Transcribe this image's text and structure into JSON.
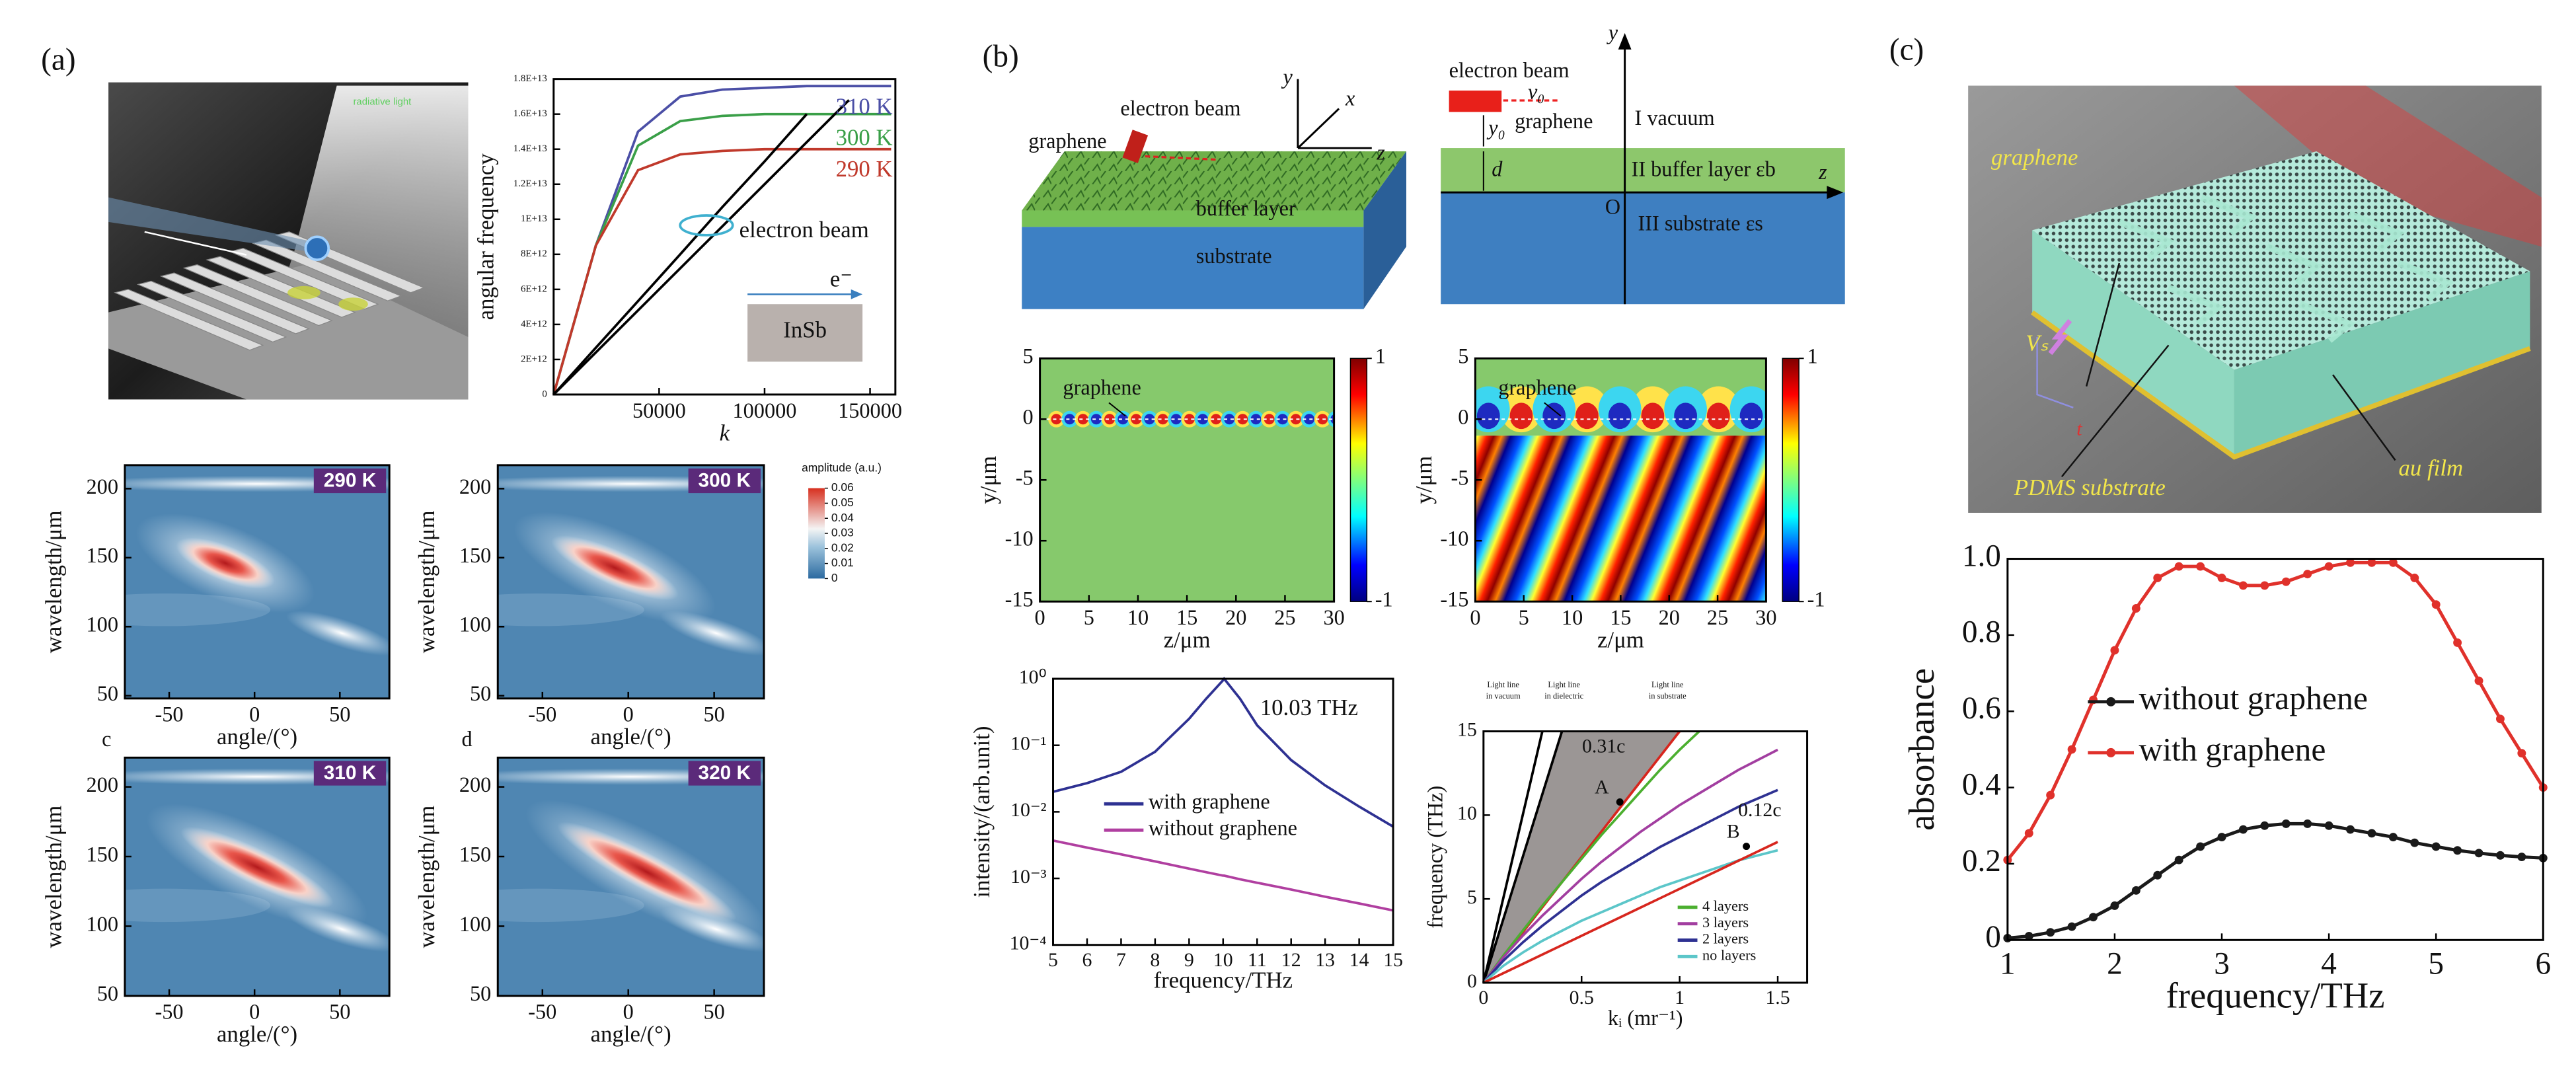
{
  "labels": {
    "a": "(a)",
    "b": "(b)",
    "c": "(c)",
    "c_sub": "c",
    "d_sub": "d"
  },
  "illustrations": {
    "a_render": {
      "label": "radiative light"
    },
    "b_slab": {
      "graphene": "graphene",
      "electron_beam": "electron beam",
      "buffer": "buffer layer",
      "substrate": "substrate",
      "y": "y",
      "x": "x",
      "z": "z"
    },
    "b_layers": {
      "electron_beam": "electron beam",
      "v0": "v₀",
      "y0": "y₀",
      "graphene": "graphene",
      "d": "d",
      "vacuum": "I vacuum",
      "buffer": "II buffer layer εb",
      "substrate": "III substrate εs",
      "origin": "O",
      "y": "y",
      "z": "z"
    },
    "c_device": {
      "graphene": "graphene",
      "vs": "Vₛ",
      "t": "t",
      "pdms": "PDMS substrate",
      "au": "au film"
    }
  },
  "chart_data": [
    {
      "type": "line",
      "ylabel": "angular frequency",
      "xlabel": "k",
      "x": [
        0,
        20000,
        40000,
        60000,
        80000,
        100000,
        120000,
        140000,
        160000
      ],
      "series": [
        {
          "name": "310 K",
          "color": "#4b4fa6",
          "values": [
            0,
            8500000000000.0,
            15000000000000.0,
            17000000000000.0,
            17400000000000.0,
            17500000000000.0,
            17600000000000.0,
            17600000000000.0,
            17600000000000.0
          ]
        },
        {
          "name": "300 K",
          "color": "#3a9f48",
          "values": [
            0,
            8500000000000.0,
            14200000000000.0,
            15600000000000.0,
            15900000000000.0,
            16000000000000.0,
            16000000000000.0,
            16000000000000.0,
            16000000000000.0
          ]
        },
        {
          "name": "290 K",
          "color": "#c0392b",
          "values": [
            0,
            8500000000000.0,
            12800000000000.0,
            13700000000000.0,
            13900000000000.0,
            14000000000000.0,
            14000000000000.0,
            14000000000000.0,
            14000000000000.0
          ]
        },
        {
          "color": "#000000",
          "values": [
            0,
            2670000000000.0,
            5330000000000.0,
            8000000000000.0,
            10700000000000.0,
            13300000000000.0,
            16000000000000.0,
            null,
            null
          ]
        },
        {
          "color": "#000000",
          "values": [
            0,
            2400000000000.0,
            4800000000000.0,
            7200000000000.0,
            9600000000000.0,
            12000000000000.0,
            14400000000000.0,
            16800000000000.0,
            null
          ]
        }
      ],
      "xlim": [
        0,
        162000
      ],
      "xticks": [
        50000,
        100000,
        150000
      ],
      "ylim": [
        0,
        18000000000000.0
      ],
      "yticks": [
        0,
        {
          "value": 2000000000000.0,
          "label": "2E+12"
        },
        {
          "value": 4000000000000.0,
          "label": "4E+12"
        },
        {
          "value": 6000000000000.0,
          "label": "6E+12"
        },
        {
          "value": 8000000000000.0,
          "label": "8E+12"
        },
        {
          "value": 10000000000000.0,
          "label": "1E+13"
        },
        {
          "value": 12000000000000.0,
          "label": "1.2E+13"
        },
        {
          "value": 14000000000000.0,
          "label": "1.4E+13"
        },
        {
          "value": 16000000000000.0,
          "label": "1.6E+13"
        },
        {
          "value": 18000000000000.0,
          "label": "1.8E+13"
        }
      ],
      "legend": "right",
      "annotations": [
        "electron beam",
        "e⁻",
        "InSb"
      ]
    },
    {
      "type": "image",
      "label": "290 K",
      "xlabel": "angle/(°)",
      "ylabel": "wavelength/μm",
      "xlim": [
        -76,
        79
      ],
      "xticks": [
        -50,
        0,
        50
      ],
      "ylim": [
        48,
        217
      ],
      "yticks": [
        50,
        100,
        150,
        200
      ]
    },
    {
      "type": "image",
      "label": "300 K",
      "xlabel": "angle/(°)",
      "ylabel": "wavelength/μm",
      "xlim": [
        -76,
        79
      ],
      "xticks": [
        -50,
        0,
        50
      ],
      "ylim": [
        48,
        217
      ],
      "yticks": [
        50,
        100,
        150,
        200
      ]
    },
    {
      "type": "image",
      "label": "310 K",
      "xlabel": "angle/(°)",
      "ylabel": "wavelength/μm",
      "xlim": [
        -76,
        79
      ],
      "xticks": [
        -50,
        0,
        50
      ],
      "ylim": [
        50,
        221
      ],
      "yticks": [
        50,
        100,
        150,
        200
      ]
    },
    {
      "type": "image",
      "label": "320 K",
      "xlabel": "angle/(°)",
      "ylabel": "wavelength/μm",
      "xlim": [
        -76,
        79
      ],
      "xticks": [
        -50,
        0,
        50
      ],
      "ylim": [
        50,
        221
      ],
      "yticks": [
        50,
        100,
        150,
        200
      ]
    },
    {
      "type": "colorbar",
      "title": "amplitude (a.u.)",
      "ylim": [
        0,
        0.06
      ],
      "yticks": [
        0,
        0.01,
        0.02,
        0.03,
        0.04,
        0.05,
        0.06
      ]
    },
    {
      "type": "field",
      "annotation": "graphene",
      "xlabel": "z/μm",
      "ylabel": "y/μm",
      "xlim": [
        0,
        30
      ],
      "xticks": [
        0,
        5,
        10,
        15,
        20,
        25,
        30
      ],
      "ylim": [
        -15,
        5
      ],
      "yticks": [
        -15,
        -10,
        -5,
        0,
        5
      ],
      "colorbar_ticks": [
        -1,
        1
      ]
    },
    {
      "type": "field",
      "annotation": "graphene",
      "xlabel": "z/μm",
      "ylabel": "y/μm",
      "xlim": [
        0,
        30
      ],
      "xticks": [
        0,
        5,
        10,
        15,
        20,
        25,
        30
      ],
      "ylim": [
        -15,
        5
      ],
      "yticks": [
        -15,
        -10,
        -5,
        0,
        5
      ],
      "colorbar_ticks": [
        -1,
        1
      ]
    },
    {
      "type": "line",
      "xlabel": "frequency/THz",
      "ylabel": "intensity/(arb.unit)",
      "log": true,
      "x": [
        5,
        6,
        7,
        8,
        9,
        9.5,
        10,
        10.03,
        10.5,
        11,
        12,
        13,
        14,
        15
      ],
      "series": [
        {
          "name": "with graphene",
          "color": "#2e3192",
          "values": [
            0.02,
            0.027,
            0.04,
            0.08,
            0.25,
            0.5,
            0.95,
            1,
            0.5,
            0.2,
            0.06,
            0.025,
            0.012,
            0.006
          ]
        },
        {
          "name": "without graphene",
          "color": "#b03fa0",
          "values": [
            0.0037,
            0.0029,
            0.0023,
            0.0018,
            0.0014,
            0.00124,
            0.0011,
            0.0011,
            0.00097,
            0.00086,
            0.00068,
            0.00053,
            0.00042,
            0.00033
          ]
        }
      ],
      "xlim": [
        5,
        15
      ],
      "xticks": [
        5,
        6,
        7,
        8,
        9,
        10,
        11,
        12,
        13,
        14,
        15
      ],
      "ylim": [
        0.0001,
        1
      ],
      "yticks": [
        {
          "value": 0.0001,
          "label": "10⁻⁴"
        },
        {
          "value": 0.001,
          "label": "10⁻³"
        },
        {
          "value": 0.01,
          "label": "10⁻²"
        },
        {
          "value": 0.1,
          "label": "10⁻¹"
        },
        {
          "value": 1,
          "label": "10⁰"
        }
      ],
      "legend": "center left",
      "annotations": [
        "10.03 THz"
      ]
    },
    {
      "type": "line",
      "xlabel": "kᵢ (mr⁻¹)",
      "ylabel": "frequency (THz)",
      "x": [
        0,
        0.1,
        0.2,
        0.3,
        0.4,
        0.5,
        0.6,
        0.7,
        0.8,
        0.9,
        1.0,
        1.1,
        1.2,
        1.3,
        1.4,
        1.5
      ],
      "series": [
        {
          "color": "#000000",
          "values": [
            0,
            5,
            10,
            15,
            null,
            null,
            null,
            null,
            null,
            null,
            null,
            null,
            null,
            null,
            null,
            null
          ]
        },
        {
          "color": "#000000",
          "values": [
            0,
            3.75,
            7.5,
            11.25,
            15,
            null,
            null,
            null,
            null,
            null,
            null,
            null,
            null,
            null,
            null,
            null
          ]
        },
        {
          "color": "#d7261e",
          "values": [
            0,
            1.5,
            3,
            4.5,
            6,
            7.5,
            9,
            10.5,
            12,
            13.5,
            15,
            null,
            null,
            null,
            null,
            null
          ]
        },
        {
          "name": "4 layers",
          "color": "#4caf30",
          "values": [
            0,
            1.6,
            3.1,
            4.6,
            6,
            7.4,
            8.8,
            10.1,
            11.4,
            12.7,
            13.9,
            15,
            null,
            null,
            null,
            null
          ]
        },
        {
          "name": "3 layers",
          "color": "#a23ea0",
          "values": [
            0,
            1.5,
            2.8,
            4,
            5.1,
            6.2,
            7.2,
            8.1,
            9,
            9.8,
            10.6,
            11.3,
            12,
            12.7,
            13.3,
            13.9
          ]
        },
        {
          "name": "2 layers",
          "color": "#2e3192",
          "values": [
            0,
            1.3,
            2.4,
            3.4,
            4.3,
            5.2,
            6,
            6.7,
            7.4,
            8.1,
            8.7,
            9.3,
            9.9,
            10.5,
            11,
            11.5
          ]
        },
        {
          "name": "no layers",
          "color": "#5cc6c9",
          "values": [
            0,
            1,
            1.8,
            2.5,
            3.1,
            3.7,
            4.2,
            4.7,
            5.2,
            5.7,
            6.1,
            6.5,
            6.9,
            7.3,
            7.6,
            7.9
          ]
        },
        {
          "color": "#d7261e",
          "values": [
            0,
            0.56,
            1.12,
            1.68,
            2.24,
            2.8,
            3.36,
            3.92,
            4.48,
            5.04,
            5.6,
            6.16,
            6.72,
            7.28,
            7.84,
            8.4
          ]
        }
      ],
      "xlim": [
        0,
        1.65
      ],
      "xticks": [
        0,
        0.5,
        1,
        1.5
      ],
      "ylim": [
        0,
        15
      ],
      "yticks": [
        0,
        5,
        10,
        15
      ],
      "legend": "lower right",
      "annotations": [
        "Light line",
        "in vacuum",
        "Light line",
        "in dielectric",
        "Light line",
        "in substrate",
        "0.31c",
        "0.12c",
        "A",
        "B"
      ]
    },
    {
      "type": "line",
      "xlabel": "frequency/THz",
      "ylabel": "absorbance",
      "markers": true,
      "x": [
        1,
        1.2,
        1.4,
        1.6,
        1.8,
        2,
        2.2,
        2.4,
        2.6,
        2.8,
        3,
        3.2,
        3.4,
        3.6,
        3.8,
        4,
        4.2,
        4.4,
        4.6,
        4.8,
        5,
        5.2,
        5.4,
        5.6,
        5.8,
        6
      ],
      "series": [
        {
          "name": "without graphene",
          "color": "#1a1a1a",
          "values": [
            0.005,
            0.01,
            0.02,
            0.035,
            0.06,
            0.09,
            0.13,
            0.17,
            0.21,
            0.245,
            0.27,
            0.29,
            0.3,
            0.305,
            0.305,
            0.3,
            0.29,
            0.28,
            0.27,
            0.255,
            0.245,
            0.235,
            0.228,
            0.222,
            0.218,
            0.215
          ]
        },
        {
          "name": "with graphene",
          "color": "#e0312b",
          "values": [
            0.21,
            0.28,
            0.38,
            0.5,
            0.63,
            0.76,
            0.87,
            0.95,
            0.98,
            0.98,
            0.95,
            0.93,
            0.93,
            0.94,
            0.96,
            0.98,
            0.99,
            0.99,
            0.99,
            0.95,
            0.88,
            0.78,
            0.68,
            0.58,
            0.49,
            0.4
          ]
        }
      ],
      "xlim": [
        1,
        6
      ],
      "xticks": [
        1,
        2,
        3,
        4,
        5,
        6
      ],
      "ylim": [
        0,
        1
      ],
      "yticks": [
        0,
        0.2,
        0.4,
        0.6,
        0.8,
        {
          "value": 1,
          "label": "1.0"
        }
      ],
      "legend": "center left"
    }
  ]
}
